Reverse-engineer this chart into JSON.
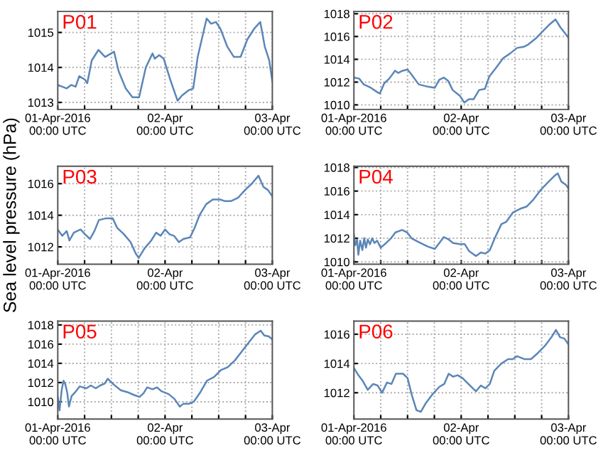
{
  "chart_data": [
    {
      "type": "line",
      "title": "P01",
      "xlim": [
        "2016-04-01T00:00",
        "2016-04-03T00:00"
      ],
      "ylim": [
        1012.8,
        1015.6
      ],
      "yticks": [
        1013,
        1014,
        1015
      ],
      "grid": true,
      "color": "#5b86b8",
      "xticks": [
        {
          "value": "2016-04-01T00:00",
          "label": "01-Apr-2016\n00:00 UTC"
        },
        {
          "value": "2016-04-01T06:00",
          "label": null
        },
        {
          "value": "2016-04-01T12:00",
          "label": null
        },
        {
          "value": "2016-04-01T18:00",
          "label": null
        },
        {
          "value": "2016-04-02T00:00",
          "label": "02-Apr\n00:00 UTC"
        },
        {
          "value": "2016-04-02T06:00",
          "label": null
        },
        {
          "value": "2016-04-02T12:00",
          "label": null
        },
        {
          "value": "2016-04-02T18:00",
          "label": null
        },
        {
          "value": "2016-04-03T00:00",
          "label": "03-Apr\n00:00 UTC"
        }
      ],
      "x": [
        "2016-04-01T00:00",
        "2016-04-01T01:00",
        "2016-04-01T02:00",
        "2016-04-01T03:00",
        "2016-04-01T04:00",
        "2016-04-01T04:48",
        "2016-04-01T06:06",
        "2016-04-01T06:36",
        "2016-04-01T07:36",
        "2016-04-01T09:06",
        "2016-04-01T10:36",
        "2016-04-01T12:36",
        "2016-04-01T13:36",
        "2016-04-01T15:12",
        "2016-04-01T16:42",
        "2016-04-01T18:12",
        "2016-04-01T19:42",
        "2016-04-01T21:12",
        "2016-04-01T21:42",
        "2016-04-01T22:42",
        "2016-04-01T23:42",
        "2016-04-02T01:18",
        "2016-04-02T02:48",
        "2016-04-02T03:48",
        "2016-04-02T05:18",
        "2016-04-02T06:18",
        "2016-04-02T07:18",
        "2016-04-02T09:18",
        "2016-04-02T10:18",
        "2016-04-02T11:24",
        "2016-04-02T12:24",
        "2016-04-02T13:54",
        "2016-04-02T15:24",
        "2016-04-02T16:54",
        "2016-04-02T18:24",
        "2016-04-02T19:54",
        "2016-04-02T21:18",
        "2016-04-02T22:18",
        "2016-04-02T23:18",
        "2016-04-03T00:00"
      ],
      "values": [
        1013.5,
        1013.45,
        1013.4,
        1013.5,
        1013.45,
        1013.75,
        1013.65,
        1013.55,
        1014.2,
        1014.5,
        1014.3,
        1014.45,
        1013.9,
        1013.4,
        1013.15,
        1013.15,
        1014.0,
        1014.4,
        1014.25,
        1014.35,
        1014.25,
        1013.6,
        1013.05,
        1013.2,
        1013.35,
        1013.4,
        1014.3,
        1015.4,
        1015.25,
        1015.3,
        1015.1,
        1014.6,
        1014.3,
        1014.3,
        1014.8,
        1015.1,
        1015.3,
        1014.6,
        1014.2,
        1013.6
      ]
    },
    {
      "type": "line",
      "title": "P02",
      "xlim": [
        "2016-04-01T00:00",
        "2016-04-03T00:00"
      ],
      "ylim": [
        1009.6,
        1018.2
      ],
      "yticks": [
        1010,
        1012,
        1014,
        1016,
        1018
      ],
      "grid": true,
      "color": "#5b86b8",
      "xticks": [
        {
          "value": "2016-04-01T00:00",
          "label": "01-Apr-2016\n00:00 UTC"
        },
        {
          "value": "2016-04-01T06:00",
          "label": null
        },
        {
          "value": "2016-04-01T12:00",
          "label": null
        },
        {
          "value": "2016-04-01T18:00",
          "label": null
        },
        {
          "value": "2016-04-02T00:00",
          "label": "02-Apr\n00:00 UTC"
        },
        {
          "value": "2016-04-02T06:00",
          "label": null
        },
        {
          "value": "2016-04-02T12:00",
          "label": null
        },
        {
          "value": "2016-04-02T18:00",
          "label": null
        },
        {
          "value": "2016-04-03T00:00",
          "label": "03-Apr\n00:00 UTC"
        }
      ],
      "x": [
        "2016-04-01T00:00",
        "2016-04-01T01:12",
        "2016-04-01T02:12",
        "2016-04-01T03:48",
        "2016-04-01T05:18",
        "2016-04-01T05:48",
        "2016-04-01T06:48",
        "2016-04-01T07:54",
        "2016-04-01T09:12",
        "2016-04-01T09:54",
        "2016-04-01T10:54",
        "2016-04-01T12:00",
        "2016-04-01T13:00",
        "2016-04-01T14:30",
        "2016-04-01T16:30",
        "2016-04-01T18:06",
        "2016-04-01T19:06",
        "2016-04-01T20:06",
        "2016-04-01T21:06",
        "2016-04-01T22:06",
        "2016-04-01T23:42",
        "2016-04-02T00:42",
        "2016-04-02T01:42",
        "2016-04-02T02:48",
        "2016-04-02T04:00",
        "2016-04-02T05:18",
        "2016-04-02T06:18",
        "2016-04-02T07:54",
        "2016-04-02T09:24",
        "2016-04-02T10:54",
        "2016-04-02T12:30",
        "2016-04-02T14:00",
        "2016-04-02T15:00",
        "2016-04-02T16:36",
        "2016-04-02T18:06",
        "2016-04-02T19:36",
        "2016-04-02T21:06",
        "2016-04-02T22:12",
        "2016-04-02T23:12",
        "2016-04-03T00:00"
      ],
      "values": [
        1012.4,
        1012.3,
        1011.8,
        1011.5,
        1011.1,
        1011.0,
        1011.9,
        1012.3,
        1013.0,
        1012.8,
        1013.0,
        1013.1,
        1012.6,
        1011.8,
        1011.6,
        1011.5,
        1012.2,
        1012.4,
        1012.1,
        1011.3,
        1010.8,
        1010.2,
        1010.5,
        1010.5,
        1011.3,
        1011.4,
        1012.5,
        1013.3,
        1014.1,
        1014.5,
        1015.0,
        1015.1,
        1015.3,
        1015.8,
        1016.4,
        1017.0,
        1017.5,
        1016.8,
        1016.3,
        1015.9
      ]
    },
    {
      "type": "line",
      "title": "P03",
      "ylabel": "Sea level pressure (hPa)",
      "xlim": [
        "2016-04-01T00:00",
        "2016-04-03T00:00"
      ],
      "ylim": [
        1010.9,
        1017.1
      ],
      "yticks": [
        1012,
        1014,
        1016
      ],
      "grid": true,
      "color": "#5b86b8",
      "xticks": [
        {
          "value": "2016-04-01T00:00",
          "label": "01-Apr-2016\n00:00 UTC"
        },
        {
          "value": "2016-04-01T06:00",
          "label": null
        },
        {
          "value": "2016-04-01T12:00",
          "label": null
        },
        {
          "value": "2016-04-01T18:00",
          "label": null
        },
        {
          "value": "2016-04-02T00:00",
          "label": "02-Apr\n00:00 UTC"
        },
        {
          "value": "2016-04-02T06:00",
          "label": null
        },
        {
          "value": "2016-04-02T12:00",
          "label": null
        },
        {
          "value": "2016-04-02T18:00",
          "label": null
        },
        {
          "value": "2016-04-03T00:00",
          "label": "03-Apr\n00:00 UTC"
        }
      ],
      "x": [
        "2016-04-01T00:00",
        "2016-04-01T01:00",
        "2016-04-01T02:00",
        "2016-04-01T02:36",
        "2016-04-01T03:36",
        "2016-04-01T05:06",
        "2016-04-01T06:06",
        "2016-04-01T07:12",
        "2016-04-01T08:12",
        "2016-04-01T09:12",
        "2016-04-01T10:42",
        "2016-04-01T12:18",
        "2016-04-01T13:18",
        "2016-04-01T14:48",
        "2016-04-01T16:18",
        "2016-04-01T17:24",
        "2016-04-01T18:06",
        "2016-04-01T19:24",
        "2016-04-01T20:54",
        "2016-04-01T22:00",
        "2016-04-01T23:00",
        "2016-04-02T00:00",
        "2016-04-02T01:00",
        "2016-04-02T02:00",
        "2016-04-02T03:06",
        "2016-04-02T04:06",
        "2016-04-02T05:36",
        "2016-04-02T06:36",
        "2016-04-02T07:42",
        "2016-04-02T09:12",
        "2016-04-02T10:42",
        "2016-04-02T12:18",
        "2016-04-02T13:18",
        "2016-04-02T14:48",
        "2016-04-02T16:18",
        "2016-04-02T17:54",
        "2016-04-02T19:24",
        "2016-04-02T20:54",
        "2016-04-02T22:00",
        "2016-04-02T23:00",
        "2016-04-03T00:00"
      ],
      "values": [
        1013.1,
        1012.7,
        1013.0,
        1012.4,
        1012.9,
        1013.1,
        1012.8,
        1012.5,
        1013.0,
        1013.7,
        1013.8,
        1013.8,
        1013.2,
        1012.8,
        1012.3,
        1011.6,
        1011.3,
        1011.9,
        1012.4,
        1012.9,
        1012.7,
        1013.1,
        1012.8,
        1012.7,
        1012.3,
        1012.5,
        1012.6,
        1013.2,
        1014.0,
        1014.7,
        1015.0,
        1015.0,
        1014.9,
        1014.9,
        1015.1,
        1015.6,
        1016.0,
        1016.5,
        1015.8,
        1015.6,
        1015.2
      ]
    },
    {
      "type": "line",
      "title": "P04",
      "xlim": [
        "2016-04-01T00:00",
        "2016-04-03T00:00"
      ],
      "ylim": [
        1009.8,
        1018.1
      ],
      "yticks": [
        1010,
        1012,
        1014,
        1016,
        1018
      ],
      "grid": true,
      "color": "#5b86b8",
      "xticks": [
        {
          "value": "2016-04-01T00:00",
          "label": "01-Apr-2016\n00:00 UTC"
        },
        {
          "value": "2016-04-01T06:00",
          "label": null
        },
        {
          "value": "2016-04-01T12:00",
          "label": null
        },
        {
          "value": "2016-04-01T18:00",
          "label": null
        },
        {
          "value": "2016-04-02T00:00",
          "label": "02-Apr\n00:00 UTC"
        },
        {
          "value": "2016-04-02T06:00",
          "label": null
        },
        {
          "value": "2016-04-02T12:00",
          "label": null
        },
        {
          "value": "2016-04-02T18:00",
          "label": null
        },
        {
          "value": "2016-04-03T00:00",
          "label": "03-Apr\n00:00 UTC"
        }
      ],
      "x": [
        "2016-04-01T00:00",
        "2016-04-01T00:18",
        "2016-04-01T00:42",
        "2016-04-01T01:00",
        "2016-04-01T01:24",
        "2016-04-01T01:54",
        "2016-04-01T02:18",
        "2016-04-01T02:42",
        "2016-04-01T03:06",
        "2016-04-01T03:36",
        "2016-04-01T04:06",
        "2016-04-01T04:36",
        "2016-04-01T05:12",
        "2016-04-01T06:00",
        "2016-04-01T07:12",
        "2016-04-01T08:18",
        "2016-04-01T09:18",
        "2016-04-01T10:48",
        "2016-04-01T11:54",
        "2016-04-01T12:54",
        "2016-04-01T14:24",
        "2016-04-01T16:30",
        "2016-04-01T18:06",
        "2016-04-01T19:06",
        "2016-04-01T20:06",
        "2016-04-01T21:12",
        "2016-04-01T22:12",
        "2016-04-01T23:42",
        "2016-04-02T00:48",
        "2016-04-02T01:48",
        "2016-04-02T03:18",
        "2016-04-02T04:24",
        "2016-04-02T05:24",
        "2016-04-02T06:24",
        "2016-04-02T07:30",
        "2016-04-02T09:00",
        "2016-04-02T10:06",
        "2016-04-02T11:36",
        "2016-04-02T13:12",
        "2016-04-02T14:42",
        "2016-04-02T16:12",
        "2016-04-02T17:48",
        "2016-04-02T19:18",
        "2016-04-02T20:54",
        "2016-04-02T21:36",
        "2016-04-02T22:24",
        "2016-04-02T23:30",
        "2016-04-03T00:00"
      ],
      "values": [
        1012.3,
        1011.4,
        1011.9,
        1010.6,
        1011.8,
        1011.0,
        1012.0,
        1011.2,
        1011.9,
        1011.5,
        1012.0,
        1011.6,
        1011.8,
        1011.2,
        1011.6,
        1012.0,
        1012.5,
        1012.7,
        1012.5,
        1012.0,
        1011.7,
        1011.3,
        1011.1,
        1011.6,
        1012.1,
        1011.9,
        1011.6,
        1011.5,
        1011.5,
        1010.9,
        1010.5,
        1010.8,
        1010.7,
        1011.0,
        1012.0,
        1013.2,
        1013.4,
        1014.2,
        1014.5,
        1014.7,
        1015.3,
        1016.1,
        1016.7,
        1017.3,
        1017.5,
        1016.8,
        1016.5,
        1016.2
      ]
    },
    {
      "type": "line",
      "title": "P05",
      "xlim": [
        "2016-04-01T00:00",
        "2016-04-03T00:00"
      ],
      "ylim": [
        1008.2,
        1018.4
      ],
      "yticks": [
        1010,
        1012,
        1014,
        1016,
        1018
      ],
      "grid": true,
      "color": "#5b86b8",
      "xticks": [
        {
          "value": "2016-04-01T00:00",
          "label": "01-Apr-2016\n00:00 UTC"
        },
        {
          "value": "2016-04-01T06:00",
          "label": null
        },
        {
          "value": "2016-04-01T12:00",
          "label": null
        },
        {
          "value": "2016-04-01T18:00",
          "label": null
        },
        {
          "value": "2016-04-02T00:00",
          "label": "02-Apr\n00:00 UTC"
        },
        {
          "value": "2016-04-02T06:00",
          "label": null
        },
        {
          "value": "2016-04-02T12:00",
          "label": null
        },
        {
          "value": "2016-04-02T18:00",
          "label": null
        },
        {
          "value": "2016-04-03T00:00",
          "label": "03-Apr\n00:00 UTC"
        }
      ],
      "x": [
        "2016-04-01T00:00",
        "2016-04-01T00:24",
        "2016-04-01T00:54",
        "2016-04-01T01:18",
        "2016-04-01T01:42",
        "2016-04-01T02:06",
        "2016-04-01T02:30",
        "2016-04-01T03:06",
        "2016-04-01T03:54",
        "2016-04-01T04:54",
        "2016-04-01T06:24",
        "2016-04-01T07:24",
        "2016-04-01T08:30",
        "2016-04-01T09:30",
        "2016-04-01T10:30",
        "2016-04-01T11:12",
        "2016-04-01T12:30",
        "2016-04-01T14:06",
        "2016-04-01T15:36",
        "2016-04-01T17:06",
        "2016-04-01T18:18",
        "2016-04-01T19:12",
        "2016-04-01T20:00",
        "2016-04-01T21:12",
        "2016-04-01T22:12",
        "2016-04-01T23:12",
        "2016-04-02T00:48",
        "2016-04-02T02:06",
        "2016-04-02T03:18",
        "2016-04-02T04:06",
        "2016-04-02T05:24",
        "2016-04-02T06:24",
        "2016-04-02T07:54",
        "2016-04-02T09:24",
        "2016-04-02T11:00",
        "2016-04-02T12:30",
        "2016-04-02T14:00",
        "2016-04-02T15:36",
        "2016-04-02T17:06",
        "2016-04-02T18:36",
        "2016-04-02T20:06",
        "2016-04-02T21:24",
        "2016-04-02T22:12",
        "2016-04-02T23:12",
        "2016-04-03T00:00"
      ],
      "values": [
        1010.5,
        1009.1,
        1011.3,
        1012.2,
        1011.8,
        1011.0,
        1009.5,
        1010.6,
        1011.0,
        1011.6,
        1011.4,
        1011.7,
        1011.4,
        1011.7,
        1011.9,
        1012.4,
        1011.8,
        1011.2,
        1011.0,
        1010.7,
        1010.5,
        1010.9,
        1011.5,
        1011.3,
        1011.5,
        1011.1,
        1010.8,
        1010.3,
        1009.5,
        1009.8,
        1009.8,
        1010.0,
        1011.0,
        1012.2,
        1012.6,
        1013.3,
        1013.6,
        1014.3,
        1015.2,
        1016.1,
        1017.0,
        1017.4,
        1016.9,
        1016.8,
        1016.5
      ]
    },
    {
      "type": "line",
      "title": "P06",
      "xlim": [
        "2016-04-01T00:00",
        "2016-04-03T00:00"
      ],
      "ylim": [
        1010.2,
        1016.9
      ],
      "yticks": [
        1012,
        1014,
        1016
      ],
      "grid": true,
      "color": "#5b86b8",
      "xticks": [
        {
          "value": "2016-04-01T00:00",
          "label": "01-Apr-2016\n00:00 UTC"
        },
        {
          "value": "2016-04-01T06:00",
          "label": null
        },
        {
          "value": "2016-04-01T12:00",
          "label": null
        },
        {
          "value": "2016-04-01T18:00",
          "label": null
        },
        {
          "value": "2016-04-02T00:00",
          "label": "02-Apr\n00:00 UTC"
        },
        {
          "value": "2016-04-02T06:00",
          "label": null
        },
        {
          "value": "2016-04-02T12:00",
          "label": null
        },
        {
          "value": "2016-04-02T18:00",
          "label": null
        },
        {
          "value": "2016-04-03T00:00",
          "label": "03-Apr\n00:00 UTC"
        }
      ],
      "x": [
        "2016-04-01T00:00",
        "2016-04-01T01:00",
        "2016-04-01T02:00",
        "2016-04-01T03:06",
        "2016-04-01T04:18",
        "2016-04-01T05:18",
        "2016-04-01T06:18",
        "2016-04-01T07:24",
        "2016-04-01T08:24",
        "2016-04-01T09:24",
        "2016-04-01T11:00",
        "2016-04-01T12:00",
        "2016-04-01T13:00",
        "2016-04-01T14:00",
        "2016-04-01T15:00",
        "2016-04-01T16:06",
        "2016-04-01T17:36",
        "2016-04-01T19:06",
        "2016-04-01T20:12",
        "2016-04-01T21:12",
        "2016-04-01T22:12",
        "2016-04-01T23:12",
        "2016-04-02T00:18",
        "2016-04-02T01:18",
        "2016-04-02T02:18",
        "2016-04-02T03:18",
        "2016-04-02T04:24",
        "2016-04-02T05:24",
        "2016-04-02T06:24",
        "2016-04-02T07:24",
        "2016-04-02T09:00",
        "2016-04-02T10:30",
        "2016-04-02T11:30",
        "2016-04-02T12:30",
        "2016-04-02T14:06",
        "2016-04-02T15:36",
        "2016-04-02T17:06",
        "2016-04-02T18:42",
        "2016-04-02T20:12",
        "2016-04-02T21:12",
        "2016-04-02T22:06",
        "2016-04-02T23:06",
        "2016-04-03T00:00"
      ],
      "values": [
        1013.7,
        1013.2,
        1012.8,
        1012.2,
        1012.6,
        1012.5,
        1012.0,
        1012.7,
        1012.6,
        1013.3,
        1013.3,
        1013.0,
        1011.8,
        1010.8,
        1010.7,
        1011.3,
        1011.9,
        1012.4,
        1012.6,
        1013.3,
        1013.1,
        1013.2,
        1013.0,
        1012.7,
        1012.4,
        1012.1,
        1012.5,
        1012.3,
        1012.6,
        1013.5,
        1014.0,
        1014.3,
        1014.3,
        1014.5,
        1014.3,
        1014.3,
        1014.7,
        1015.2,
        1015.8,
        1016.3,
        1015.8,
        1015.7,
        1015.3
      ]
    }
  ]
}
